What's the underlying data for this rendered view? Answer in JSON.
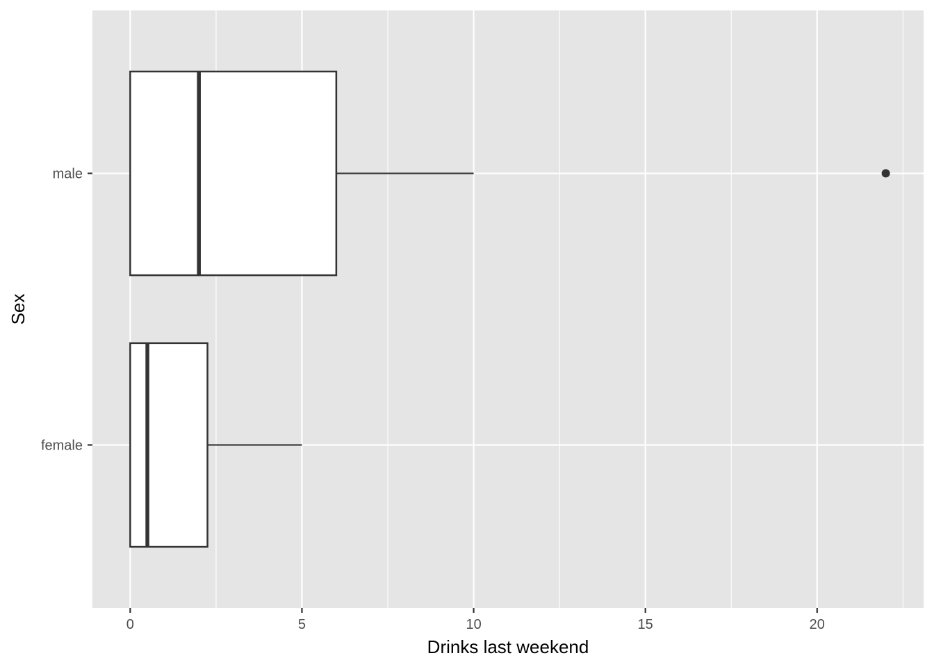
{
  "chart_data": {
    "type": "boxplot",
    "orientation": "horizontal",
    "title": "",
    "xlabel": "Drinks last weekend",
    "ylabel": "Sex",
    "xlim": [
      -1.1,
      23.1
    ],
    "x_ticks": [
      0,
      5,
      10,
      15,
      20
    ],
    "x_tick_labels": [
      "0",
      "5",
      "10",
      "15",
      "20"
    ],
    "x_minor_ticks": [
      2.5,
      7.5,
      12.5,
      17.5,
      22.5
    ],
    "categories": [
      "male",
      "female"
    ],
    "boxes": [
      {
        "category": "male",
        "min": 0,
        "q1": 0,
        "median": 2,
        "q3": 6,
        "max": 10,
        "outliers": [
          22
        ]
      },
      {
        "category": "female",
        "min": 0,
        "q1": 0,
        "median": 0.5,
        "q3": 2.25,
        "max": 5,
        "outliers": []
      }
    ],
    "grid": true,
    "colors": {
      "panel": "#e5e5e5",
      "grid": "#ffffff",
      "box_fill": "#ffffff",
      "box_stroke": "#333333",
      "outlier": "#333333",
      "tick": "#333333"
    }
  }
}
